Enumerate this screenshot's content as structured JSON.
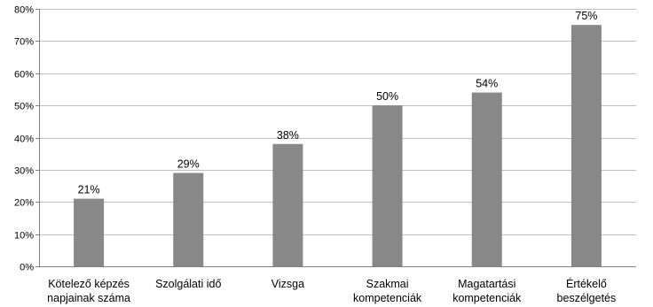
{
  "chart_data": {
    "type": "bar",
    "categories": [
      [
        "Kötelező képzés",
        "napjainak száma"
      ],
      [
        "Szolgálati idő"
      ],
      [
        "Vizsga"
      ],
      [
        "Szakmai",
        "kompetenciák"
      ],
      [
        "Magatartási",
        "kompetenciák"
      ],
      [
        "Értékelő",
        "beszélgetés"
      ]
    ],
    "values": [
      21,
      29,
      38,
      50,
      54,
      75
    ],
    "data_labels": [
      "21%",
      "29%",
      "38%",
      "50%",
      "54%",
      "75%"
    ],
    "y_ticks": [
      0,
      10,
      20,
      30,
      40,
      50,
      60,
      70,
      80
    ],
    "y_tick_labels": [
      "0%",
      "10%",
      "20%",
      "30%",
      "40%",
      "50%",
      "60%",
      "70%",
      "80%"
    ],
    "ylim": [
      0,
      80
    ],
    "grid": true,
    "legend": "none",
    "bar_color": "#888888",
    "grid_color": "#bfbfbf"
  }
}
